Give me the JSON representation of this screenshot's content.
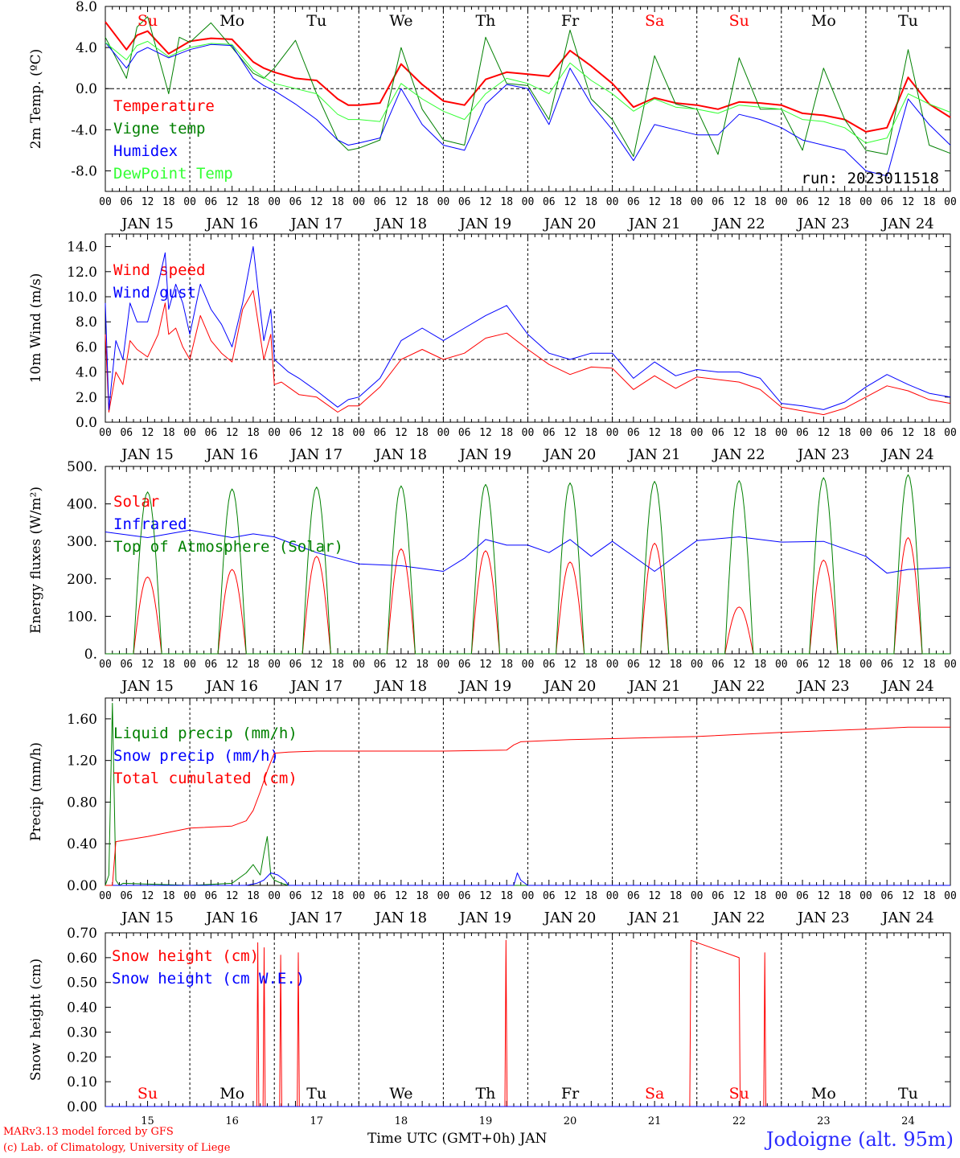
{
  "run_label": "run: 2023011518",
  "days": [
    "Su",
    "Mo",
    "Tu",
    "We",
    "Th",
    "Fr",
    "Sa",
    "Su",
    "Mo",
    "Tu"
  ],
  "day_colors": [
    "#ff0000",
    "#000000",
    "#000000",
    "#000000",
    "#000000",
    "#000000",
    "#ff0000",
    "#ff0000",
    "#000000",
    "#000000"
  ],
  "date_labels": [
    "JAN 15",
    "JAN 16",
    "JAN 17",
    "JAN 18",
    "JAN 19",
    "JAN 20",
    "JAN 21",
    "JAN 22",
    "JAN 23",
    "JAN 24"
  ],
  "day_numbers": [
    "15",
    "16",
    "17",
    "18",
    "19",
    "20",
    "21",
    "22",
    "23",
    "24"
  ],
  "hour_ticks": [
    "00",
    "06",
    "12",
    "18"
  ],
  "x_axis_title": "Time UTC (GMT+0h) JAN",
  "footer_model": "MARv3.13 model forced by GFS",
  "footer_lab": "(c) Lab. of Climatology, University of Liege",
  "station": "Jodoigne (alt. 95m)",
  "chart_data": [
    {
      "type": "line",
      "ylabel": "2m Temp. (ºC)",
      "ylim": [
        -10,
        8
      ],
      "yticks": [
        8,
        4,
        0,
        -4,
        -8
      ],
      "ytick_labels": [
        "8.0",
        "4.0",
        "0.0",
        "-4.0",
        "-8.0"
      ],
      "ref_line": 0,
      "x_unit": "hours since JAN 15 00 UTC",
      "series": [
        {
          "name": "Temperature",
          "color": "#ff0000",
          "width": 2,
          "x": [
            0,
            6,
            9,
            12,
            18,
            21,
            24,
            30,
            36,
            42,
            45,
            48,
            54,
            60,
            66,
            69,
            72,
            78,
            84,
            90,
            96,
            102,
            108,
            114,
            120,
            126,
            132,
            138,
            144,
            150,
            156,
            162,
            168,
            174,
            180,
            186,
            192,
            198,
            204,
            210,
            216,
            222,
            228,
            234,
            240
          ],
          "y": [
            6.5,
            3.8,
            5.2,
            5.6,
            3.4,
            4.0,
            4.6,
            4.9,
            4.8,
            2.6,
            2.0,
            1.6,
            1.0,
            0.8,
            -1.0,
            -1.6,
            -1.6,
            -1.4,
            2.4,
            0.4,
            -1.2,
            -1.6,
            0.9,
            1.6,
            1.4,
            1.2,
            3.7,
            2.2,
            0.5,
            -1.8,
            -0.9,
            -1.4,
            -1.6,
            -2.0,
            -1.3,
            -1.4,
            -1.6,
            -2.4,
            -2.6,
            -3.0,
            -4.2,
            -3.8,
            1.1,
            -1.5,
            -2.8
          ]
        },
        {
          "name": "Vigne temp",
          "color": "#008000",
          "width": 1,
          "x": [
            0,
            6,
            9,
            12,
            18,
            21,
            24,
            30,
            36,
            42,
            45,
            48,
            54,
            60,
            66,
            69,
            72,
            78,
            84,
            90,
            96,
            102,
            108,
            114,
            120,
            126,
            132,
            138,
            144,
            150,
            156,
            162,
            168,
            174,
            180,
            186,
            192,
            198,
            204,
            210,
            216,
            222,
            228,
            234,
            240
          ],
          "y": [
            5.0,
            1.0,
            6.0,
            7.0,
            -0.5,
            5.0,
            4.5,
            6.4,
            4.0,
            1.5,
            1.0,
            2.0,
            4.7,
            -0.5,
            -5.0,
            -6.0,
            -5.8,
            -5.0,
            4.0,
            -2.0,
            -5.0,
            -5.5,
            5.0,
            0.5,
            0.3,
            -3.0,
            5.7,
            -1.0,
            -3.0,
            -6.6,
            3.2,
            -1.5,
            -2.0,
            -6.4,
            3.0,
            -2.0,
            -2.0,
            -6.0,
            2.0,
            -3.0,
            -6.0,
            -6.4,
            3.8,
            -5.5,
            -6.3
          ]
        },
        {
          "name": "Humidex",
          "color": "#0000ff",
          "width": 1,
          "x": [
            0,
            6,
            9,
            12,
            18,
            21,
            24,
            30,
            36,
            42,
            45,
            48,
            54,
            60,
            66,
            69,
            72,
            78,
            84,
            90,
            96,
            102,
            108,
            114,
            120,
            126,
            132,
            138,
            144,
            150,
            156,
            162,
            168,
            174,
            180,
            186,
            192,
            198,
            204,
            210,
            216,
            222,
            228,
            234,
            240
          ],
          "y": [
            4.5,
            2.0,
            3.5,
            4.0,
            3.0,
            3.4,
            3.8,
            4.3,
            4.2,
            1.0,
            0.3,
            -0.2,
            -1.5,
            -3.0,
            -5.0,
            -5.5,
            -5.3,
            -4.8,
            0.0,
            -3.5,
            -5.5,
            -6.0,
            -1.5,
            0.4,
            0.0,
            -3.5,
            2.0,
            -1.5,
            -4.0,
            -7.0,
            -3.5,
            -4.0,
            -4.5,
            -4.5,
            -2.5,
            -3.0,
            -3.8,
            -5.0,
            -5.5,
            -6.0,
            -8.0,
            -8.5,
            -1.0,
            -3.5,
            -5.5
          ]
        },
        {
          "name": "DewPoint Temp",
          "color": "#33ff33",
          "width": 1,
          "x": [
            0,
            6,
            9,
            12,
            18,
            21,
            24,
            30,
            36,
            42,
            45,
            48,
            54,
            60,
            66,
            69,
            72,
            78,
            84,
            90,
            96,
            102,
            108,
            114,
            120,
            126,
            132,
            138,
            144,
            150,
            156,
            162,
            168,
            174,
            180,
            186,
            192,
            198,
            204,
            210,
            216,
            222,
            228,
            234,
            240
          ],
          "y": [
            4.5,
            2.8,
            4.2,
            4.6,
            3.1,
            3.6,
            4.0,
            4.4,
            4.3,
            1.8,
            1.1,
            0.5,
            0.0,
            -0.5,
            -2.5,
            -3.0,
            -3.0,
            -3.2,
            0.5,
            -1.0,
            -2.2,
            -3.0,
            -0.5,
            1.0,
            0.5,
            -0.5,
            2.5,
            0.8,
            -0.5,
            -2.2,
            -1.0,
            -1.8,
            -2.0,
            -2.4,
            -1.6,
            -1.8,
            -2.0,
            -3.0,
            -3.2,
            -3.8,
            -5.3,
            -4.8,
            -0.5,
            -1.5,
            -2.3
          ]
        }
      ]
    },
    {
      "type": "line",
      "ylabel": "10m Wind (m/s)",
      "ylim": [
        0,
        15
      ],
      "yticks": [
        14,
        12,
        10,
        8,
        6,
        4,
        2,
        0
      ],
      "ytick_labels": [
        "14.0",
        "12.0",
        "10.0",
        "8.0",
        "6.0",
        "4.0",
        "2.0",
        "0.0"
      ],
      "ref_line": 5,
      "x_unit": "hours since JAN 15 00 UTC",
      "series": [
        {
          "name": "Wind speed",
          "color": "#ff0000",
          "width": 1,
          "x": [
            0,
            1,
            3,
            5,
            7,
            9,
            12,
            15,
            17,
            18,
            20,
            22,
            24,
            27,
            30,
            33,
            36,
            39,
            42,
            45,
            47,
            48,
            50,
            52,
            55,
            60,
            66,
            69,
            72,
            78,
            84,
            90,
            96,
            102,
            108,
            114,
            120,
            126,
            132,
            138,
            144,
            150,
            156,
            162,
            168,
            174,
            180,
            186,
            192,
            198,
            204,
            210,
            216,
            222,
            228,
            234,
            240
          ],
          "y": [
            7.0,
            0.8,
            4.0,
            3.0,
            6.5,
            5.8,
            5.2,
            7.0,
            9.5,
            7.0,
            7.5,
            6.0,
            5.0,
            8.5,
            6.5,
            5.5,
            4.8,
            9.0,
            10.5,
            5.0,
            7.0,
            3.0,
            3.2,
            2.8,
            2.2,
            2.0,
            0.8,
            1.3,
            1.3,
            2.8,
            5.0,
            5.8,
            5.0,
            5.5,
            6.7,
            7.1,
            5.8,
            4.6,
            3.8,
            4.4,
            4.3,
            2.6,
            3.7,
            2.7,
            3.6,
            3.4,
            3.2,
            2.6,
            1.2,
            0.9,
            0.6,
            1.1,
            2.0,
            2.9,
            2.5,
            1.8,
            1.5
          ]
        },
        {
          "name": "Wind gust",
          "color": "#0000ff",
          "width": 1,
          "x": [
            0,
            1,
            3,
            5,
            7,
            9,
            12,
            15,
            17,
            18,
            20,
            22,
            24,
            27,
            30,
            33,
            36,
            39,
            42,
            45,
            47,
            48,
            50,
            52,
            55,
            60,
            66,
            69,
            72,
            78,
            84,
            90,
            96,
            102,
            108,
            114,
            120,
            126,
            132,
            138,
            144,
            150,
            156,
            162,
            168,
            174,
            180,
            186,
            192,
            198,
            204,
            210,
            216,
            222,
            228,
            234,
            240
          ],
          "y": [
            9.5,
            1.0,
            6.5,
            5.0,
            9.5,
            8.0,
            8.0,
            11.0,
            13.5,
            9.0,
            11.0,
            9.5,
            7.0,
            11.0,
            9.0,
            7.8,
            6.0,
            9.5,
            14.0,
            6.5,
            9.0,
            5.0,
            4.5,
            4.0,
            3.5,
            2.5,
            1.2,
            1.8,
            2.0,
            3.5,
            6.5,
            7.5,
            6.5,
            7.5,
            8.5,
            9.3,
            7.0,
            5.5,
            5.0,
            5.5,
            5.5,
            3.5,
            4.8,
            3.7,
            4.2,
            4.0,
            4.0,
            3.5,
            1.5,
            1.3,
            1.0,
            1.6,
            2.8,
            3.8,
            3.0,
            2.3,
            2.0
          ]
        }
      ]
    },
    {
      "type": "line",
      "ylabel": "Energy fluxes (W/m²)",
      "ylim": [
        0,
        500
      ],
      "yticks": [
        500,
        400,
        300,
        200,
        100,
        0
      ],
      "ytick_labels": [
        "500.",
        "400.",
        "300.",
        "200.",
        "100.",
        "0."
      ],
      "x_unit": "hours since JAN 15 00 UTC",
      "diurnal": {
        "rise_hour": 8,
        "set_hour": 16
      },
      "series": [
        {
          "name": "Solar",
          "color": "#ff0000",
          "width": 1,
          "daily_peak": [
            205,
            225,
            260,
            280,
            275,
            245,
            295,
            125,
            250,
            310
          ]
        },
        {
          "name": "Infrared",
          "color": "#0000ff",
          "width": 1,
          "x": [
            0,
            12,
            24,
            36,
            42,
            48,
            60,
            72,
            84,
            96,
            102,
            108,
            114,
            120,
            126,
            132,
            138,
            144,
            156,
            168,
            180,
            192,
            204,
            216,
            222,
            228,
            240
          ],
          "y": [
            325,
            310,
            330,
            310,
            320,
            312,
            270,
            240,
            235,
            220,
            255,
            305,
            290,
            290,
            270,
            305,
            260,
            300,
            220,
            302,
            312,
            298,
            300,
            260,
            215,
            225,
            230
          ]
        },
        {
          "name": "Top of Atmosphere (Solar)",
          "color": "#008000",
          "width": 1,
          "daily_peak": [
            432,
            440,
            445,
            448,
            452,
            456,
            460,
            462,
            470,
            478
          ]
        }
      ]
    },
    {
      "type": "line",
      "ylabel": "Precip (mm/h)",
      "ylim": [
        0,
        1.8
      ],
      "yticks": [
        1.6,
        1.2,
        0.8,
        0.4,
        0.0
      ],
      "ytick_labels": [
        "1.60",
        "1.20",
        "0.80",
        "0.40",
        "0.00"
      ],
      "x_unit": "hours since JAN 15 00 UTC",
      "series": [
        {
          "name": "Liquid precip (mm/h)",
          "color": "#008000",
          "width": 1,
          "x": [
            0,
            1,
            2,
            3,
            4,
            5,
            24,
            36,
            40,
            42,
            44,
            45,
            46,
            47,
            48,
            50,
            52,
            120,
            240
          ],
          "y": [
            0,
            0.1,
            1.75,
            0.05,
            0,
            0.02,
            0,
            0.02,
            0.12,
            0.2,
            0.1,
            0.3,
            0.47,
            0.1,
            0.05,
            0.02,
            0,
            0,
            0
          ]
        },
        {
          "name": "Snow precip (mm/h)",
          "color": "#0000ff",
          "width": 1,
          "x": [
            0,
            40,
            43,
            45,
            47,
            49,
            51,
            52,
            116,
            117,
            118,
            120,
            240
          ],
          "y": [
            0,
            0,
            0.02,
            0.05,
            0.12,
            0.1,
            0.05,
            0,
            0,
            0.12,
            0.05,
            0,
            0
          ]
        },
        {
          "name": "Total cumulated (cm)",
          "color": "#ff0000",
          "width": 1,
          "x": [
            0,
            2,
            3,
            12,
            24,
            36,
            40,
            42,
            44,
            46,
            48,
            52,
            60,
            96,
            114,
            116,
            118,
            132,
            144,
            168,
            192,
            216,
            228,
            240
          ],
          "y": [
            0,
            0,
            0.42,
            0.47,
            0.55,
            0.57,
            0.62,
            0.72,
            0.9,
            1.1,
            1.27,
            1.28,
            1.29,
            1.29,
            1.3,
            1.35,
            1.38,
            1.4,
            1.41,
            1.43,
            1.47,
            1.5,
            1.52,
            1.52
          ]
        }
      ]
    },
    {
      "type": "line",
      "ylabel": "Snow height (cm)",
      "ylim": [
        0,
        0.7
      ],
      "yticks": [
        0.7,
        0.6,
        0.5,
        0.4,
        0.3,
        0.2,
        0.1,
        0.0
      ],
      "ytick_labels": [
        "0.70",
        "0.60",
        "0.50",
        "0.40",
        "0.30",
        "0.20",
        "0.10",
        "0.00"
      ],
      "x_unit": "hours since JAN 15 00 UTC",
      "series": [
        {
          "name": "Snow height (cm)",
          "color": "#ff0000",
          "width": 1,
          "x": [
            0,
            43.0,
            43.3,
            43.6,
            44.8,
            45.1,
            45.4,
            49.5,
            49.8,
            50.1,
            54.5,
            54.8,
            55.1,
            113.5,
            113.8,
            114.1,
            166.0,
            166.3,
            180.0,
            180.3,
            187.0,
            187.3,
            187.6,
            240
          ],
          "y": [
            0,
            0,
            0.66,
            0,
            0,
            0.64,
            0,
            0,
            0.61,
            0,
            0,
            0.62,
            0,
            0,
            0.67,
            0,
            0,
            0.67,
            0.6,
            0,
            0,
            0.62,
            0,
            0
          ]
        },
        {
          "name": "Snow height (cm W.E.)",
          "color": "#0000ff",
          "width": 1,
          "x": [
            0,
            240
          ],
          "y": [
            0,
            0
          ]
        }
      ]
    }
  ]
}
